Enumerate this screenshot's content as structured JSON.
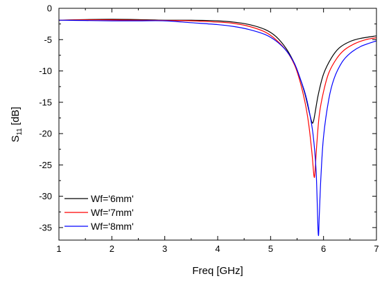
{
  "chart_data": {
    "type": "line",
    "xlabel": "Freq [GHz]",
    "ylabel_main": "S",
    "ylabel_sub": "11",
    "ylabel_unit": " [dB]",
    "xlim": [
      1,
      7
    ],
    "ylim": [
      -37,
      0
    ],
    "xticks": [
      1,
      2,
      3,
      4,
      5,
      6,
      7
    ],
    "yticks": [
      0,
      -5,
      -10,
      -15,
      -20,
      -25,
      -30,
      -35
    ],
    "grid": false,
    "legend_placement": "bottom-left",
    "series": [
      {
        "name": "Wf='6mm'",
        "color": "#000000",
        "x": [
          1.0,
          1.5,
          2.0,
          2.5,
          3.0,
          3.5,
          4.0,
          4.3,
          4.6,
          4.9,
          5.1,
          5.3,
          5.45,
          5.55,
          5.65,
          5.72,
          5.78,
          5.81,
          5.84,
          5.9,
          6.0,
          6.15,
          6.3,
          6.5,
          6.7,
          7.0
        ],
        "values": [
          -1.9,
          -1.8,
          -1.75,
          -1.8,
          -1.9,
          -1.9,
          -2.0,
          -2.2,
          -2.6,
          -3.4,
          -4.5,
          -6.5,
          -8.8,
          -11.0,
          -13.7,
          -16.2,
          -18.2,
          -18.0,
          -16.7,
          -13.8,
          -10.5,
          -7.9,
          -6.3,
          -5.3,
          -4.8,
          -4.4
        ]
      },
      {
        "name": "Wf='7mm'",
        "color": "#ff0000",
        "x": [
          1.0,
          1.5,
          2.0,
          2.5,
          3.0,
          3.5,
          4.0,
          4.3,
          4.6,
          4.9,
          5.1,
          5.3,
          5.45,
          5.55,
          5.65,
          5.72,
          5.78,
          5.82,
          5.84,
          5.87,
          5.92,
          6.0,
          6.1,
          6.25,
          6.4,
          6.6,
          6.8,
          7.0
        ],
        "values": [
          -1.9,
          -1.85,
          -1.85,
          -1.9,
          -1.95,
          -2.0,
          -2.2,
          -2.4,
          -2.9,
          -3.8,
          -5.0,
          -6.8,
          -9.0,
          -11.5,
          -15.0,
          -18.5,
          -23.0,
          -26.8,
          -26.0,
          -22.0,
          -17.0,
          -13.3,
          -10.3,
          -8.0,
          -6.6,
          -5.6,
          -5.0,
          -4.7
        ]
      },
      {
        "name": "Wf='8mm'",
        "color": "#0000ff",
        "x": [
          1.0,
          1.5,
          2.0,
          2.5,
          3.0,
          3.5,
          4.0,
          4.3,
          4.6,
          4.9,
          5.1,
          5.3,
          5.45,
          5.55,
          5.65,
          5.72,
          5.8,
          5.86,
          5.9,
          5.92,
          5.95,
          6.0,
          6.1,
          6.2,
          6.35,
          6.5,
          6.7,
          7.0
        ],
        "values": [
          -1.9,
          -1.95,
          -2.0,
          -2.0,
          -2.0,
          -2.3,
          -2.6,
          -2.9,
          -3.4,
          -4.2,
          -5.2,
          -6.8,
          -8.8,
          -11.0,
          -13.5,
          -16.0,
          -20.0,
          -26.0,
          -36.0,
          -33.0,
          -27.0,
          -20.5,
          -14.5,
          -11.2,
          -8.6,
          -7.2,
          -6.1,
          -5.2
        ]
      }
    ]
  }
}
